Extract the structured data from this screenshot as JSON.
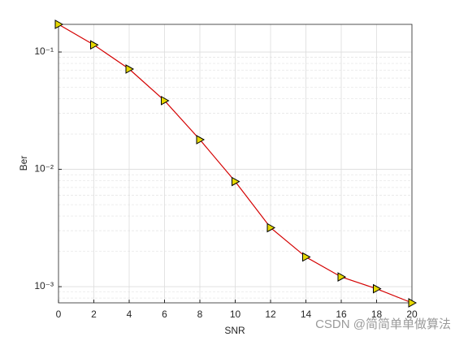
{
  "chart_data": {
    "type": "line",
    "xlabel": "SNR",
    "ylabel": "Ber",
    "x": [
      0,
      2,
      4,
      6,
      8,
      10,
      12,
      14,
      16,
      18,
      20
    ],
    "values": [
      0.172,
      0.115,
      0.0716,
      0.0385,
      0.0179,
      0.00787,
      0.00318,
      0.00179,
      0.00121,
      0.00096,
      0.000728
    ],
    "color": "#d40000",
    "marker": "triangle-right",
    "marker_color": "#e6d800",
    "xlim": [
      0,
      20
    ],
    "xticks": [
      0,
      2,
      4,
      6,
      8,
      10,
      12,
      14,
      16,
      18,
      20
    ],
    "ylim": [
      0.000728,
      0.172
    ],
    "yscale": "log",
    "yticks": [
      {
        "value": 0.001,
        "label": "10⁻³"
      },
      {
        "value": 0.01,
        "label": "10⁻²"
      },
      {
        "value": 0.1,
        "label": "10⁻¹"
      }
    ],
    "yminorticks": [
      0.0008,
      0.0009,
      0.002,
      0.003,
      0.004,
      0.005,
      0.006,
      0.007,
      0.008,
      0.009,
      0.02,
      0.03,
      0.04,
      0.05,
      0.06,
      0.07,
      0.08,
      0.09
    ],
    "grid": true,
    "watermark": "CSDN @简简单单做算法"
  }
}
